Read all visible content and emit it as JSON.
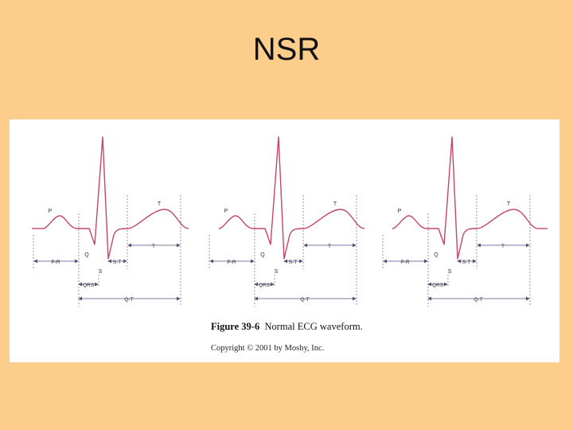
{
  "slide": {
    "title": "NSR"
  },
  "figure": {
    "caption_number": "Figure 39-6",
    "caption_text": "Normal ECG waveform.",
    "copyright": "Copyright © 2001 by Mosby, Inc."
  },
  "waveform_labels": {
    "p": "P",
    "q": "Q",
    "s": "S",
    "t": "T",
    "pr": "P-R",
    "st": "S-T",
    "t_interval": "T",
    "qrs": "QRS",
    "qt": "Q-T"
  },
  "colors": {
    "trace": "#c4456a",
    "annotation": "#5a4a7a",
    "guide": "#6a6a8a"
  }
}
